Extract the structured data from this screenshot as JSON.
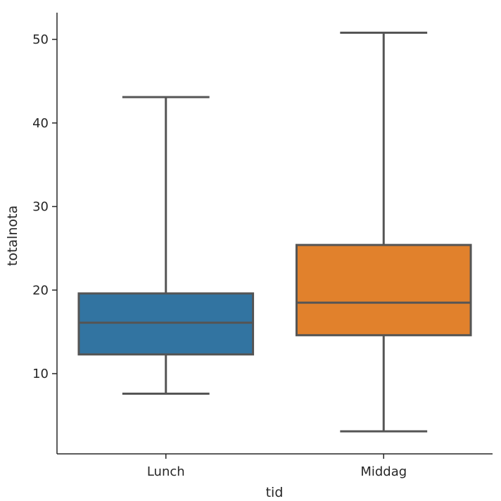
{
  "chart_data": {
    "type": "boxplot",
    "xlabel": "tid",
    "ylabel": "totalnota",
    "categories": [
      "Lunch",
      "Middag"
    ],
    "boxes": [
      {
        "category": "Lunch",
        "whisker_low": 7.6,
        "q1": 12.3,
        "median": 16.1,
        "q3": 19.6,
        "whisker_high": 43.1,
        "color": "#3274a1"
      },
      {
        "category": "Middag",
        "whisker_low": 3.1,
        "q1": 14.6,
        "median": 18.5,
        "q3": 25.4,
        "whisker_high": 50.8,
        "color": "#e1812c"
      }
    ],
    "yticks": [
      10,
      20,
      30,
      40,
      50
    ],
    "ylim": [
      0.4,
      53.2
    ],
    "line_color": "#555555",
    "spine_color": "#262626"
  }
}
